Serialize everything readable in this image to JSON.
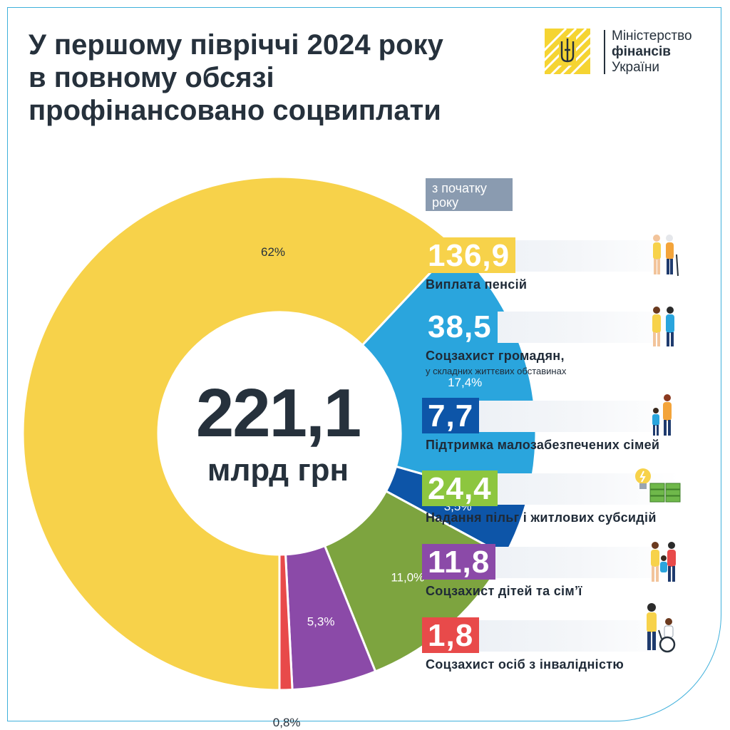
{
  "title_lines": [
    "У першому півріччі 2024 року",
    "в повному обсязі",
    "профінансовано соцвиплати"
  ],
  "logo": {
    "line1": "Міністерство",
    "line2": "фінансів",
    "line3": "України",
    "emblem": "tryzub-emblem"
  },
  "badge": {
    "line1": "з початку",
    "line2": "року"
  },
  "center": {
    "value": "221,1",
    "unit": "млрд грн"
  },
  "chart_data": {
    "type": "pie",
    "total": 221.1,
    "unit": "млрд грн",
    "slices": [
      {
        "label": "Виплата пенсій",
        "value": 136.9,
        "percent": 62,
        "percent_label": "62%",
        "color": "#f7d24a"
      },
      {
        "label": "Соцзахист громадян",
        "value": 38.5,
        "percent": 17.4,
        "percent_label": "17,4%",
        "color": "#2aa5dd"
      },
      {
        "label": "Підтримка малозабезпечених сімей",
        "value": 7.7,
        "percent": 3.5,
        "percent_label": "3,5%",
        "color": "#0d55a8"
      },
      {
        "label": "Надання пільг і житлових субсидій",
        "value": 24.4,
        "percent": 11.0,
        "percent_label": "11,0%",
        "color": "#7da43f"
      },
      {
        "label": "Соцзахист дітей та сім'ї",
        "value": 11.8,
        "percent": 5.3,
        "percent_label": "5,3%",
        "color": "#8b4aa8"
      },
      {
        "label": "Соцзахист осіб з інвалідністю",
        "value": 1.8,
        "percent": 0.8,
        "percent_label": "0,8%",
        "color": "#e84a4a"
      }
    ]
  },
  "rows": [
    {
      "value": "136,9",
      "label": "Виплата пенсій",
      "sublabel": "",
      "color": "#f7d24a",
      "icon": "elderly-couple-icon"
    },
    {
      "value": "38,5",
      "label": "Соцзахист громадян,",
      "sublabel": "у складних життєвих обставинах",
      "color": "#2aa5dd",
      "icon": "support-people-icon"
    },
    {
      "value": "7,7",
      "label": "Підтримка малозабезпечених сімей",
      "sublabel": "",
      "color": "#0d55a8",
      "icon": "parent-child-icon"
    },
    {
      "value": "24,4",
      "label": "Надання пільг і житлових субсидій",
      "sublabel": "",
      "color": "#8dc63f",
      "icon": "lightbulb-money-icon"
    },
    {
      "value": "11,8",
      "label": "Соцзахист дітей та сім’ї",
      "sublabel": "",
      "color": "#8b4aa8",
      "icon": "family-icon"
    },
    {
      "value": "1,8",
      "label": "Соцзахист осіб з інвалідністю",
      "sublabel": "",
      "color": "#e84a4a",
      "icon": "wheelchair-icon"
    }
  ]
}
